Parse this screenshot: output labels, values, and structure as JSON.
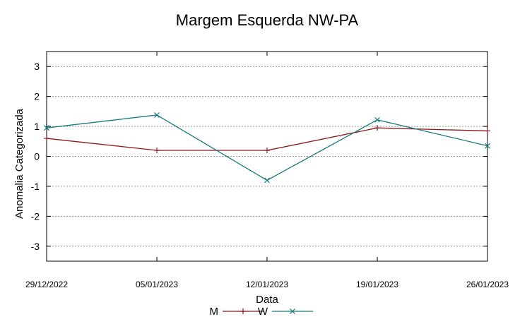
{
  "chart_data": {
    "type": "line",
    "title": "Margem Esquerda NW-PA",
    "xlabel": "Data",
    "ylabel": "Anomalia Categorizada",
    "categories": [
      "29/12/2022",
      "05/01/2023",
      "12/01/2023",
      "19/01/2023",
      "26/01/2023"
    ],
    "ylim": [
      -3.5,
      3.5
    ],
    "yticks": [
      -3,
      -2,
      -1,
      0,
      1,
      2,
      3
    ],
    "grid": true,
    "legend_position": "bottom-center",
    "series": [
      {
        "name": "M",
        "color": "#8b1a1a",
        "marker": "plus",
        "values": [
          0.6,
          0.2,
          0.2,
          0.95,
          0.85
        ]
      },
      {
        "name": "W",
        "color": "#1a7a80",
        "marker": "cross",
        "values": [
          0.95,
          1.38,
          -0.8,
          1.22,
          0.35
        ]
      }
    ]
  }
}
